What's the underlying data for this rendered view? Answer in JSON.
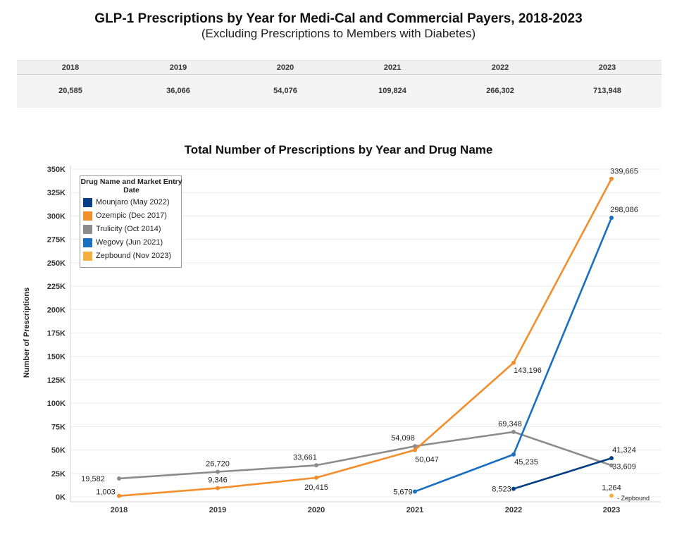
{
  "header": {
    "title": "GLP-1 Prescriptions by Year for Medi-Cal and Commercial Payers, 2018-2023",
    "subtitle": "(Excluding Prescriptions to Members with Diabetes)"
  },
  "summary_table": {
    "years": [
      "2018",
      "2019",
      "2020",
      "2021",
      "2022",
      "2023"
    ],
    "totals": [
      "20,585",
      "36,066",
      "54,076",
      "109,824",
      "266,302",
      "713,948"
    ]
  },
  "colors": {
    "Mounjaro": "#063f84",
    "Ozempic": "#f28e2b",
    "Trulicity": "#8c8c8c",
    "Wegovy": "#1a6fc0",
    "Zepbound": "#f5b041"
  },
  "chart_data": {
    "type": "line",
    "title": "Total Number of Prescriptions by Year and Drug Name",
    "xlabel": "",
    "ylabel": "Number of Prescriptions",
    "categories": [
      "2018",
      "2019",
      "2020",
      "2021",
      "2022",
      "2023"
    ],
    "ylim": [
      0,
      350000
    ],
    "yticks": [
      "0K",
      "25K",
      "50K",
      "75K",
      "100K",
      "125K",
      "150K",
      "175K",
      "200K",
      "225K",
      "250K",
      "275K",
      "300K",
      "325K",
      "350K"
    ],
    "legend_title": "Drug Name and Market Entry Date",
    "legend_position": "top-left",
    "grid": true,
    "series": [
      {
        "name": "Mounjaro (May 2022)",
        "key": "Mounjaro",
        "values": [
          null,
          null,
          null,
          null,
          8523,
          41324
        ],
        "labels": [
          null,
          null,
          null,
          null,
          "8,523",
          "41,324"
        ]
      },
      {
        "name": "Ozempic (Dec 2017)",
        "key": "Ozempic",
        "values": [
          1003,
          9346,
          20415,
          50047,
          143196,
          339665
        ],
        "labels": [
          "1,003",
          "9,346",
          "20,415",
          "50,047",
          "143,196",
          "339,665"
        ]
      },
      {
        "name": "Trulicity (Oct 2014)",
        "key": "Trulicity",
        "values": [
          19582,
          26720,
          33661,
          54098,
          69348,
          33609
        ],
        "labels": [
          "19,582",
          "26,720",
          "33,661",
          "54,098",
          "69,348",
          "33,609"
        ]
      },
      {
        "name": "Wegovy (Jun 2021)",
        "key": "Wegovy",
        "values": [
          null,
          null,
          null,
          5679,
          45235,
          298086
        ],
        "labels": [
          null,
          null,
          null,
          "5,679",
          "45,235",
          "298,086"
        ]
      },
      {
        "name": "Zepbound (Nov 2023)",
        "key": "Zepbound",
        "values": [
          null,
          null,
          null,
          null,
          null,
          1264
        ],
        "labels": [
          null,
          null,
          null,
          null,
          null,
          "1,264"
        ]
      }
    ],
    "annotations": [
      "- Zepbound"
    ]
  }
}
